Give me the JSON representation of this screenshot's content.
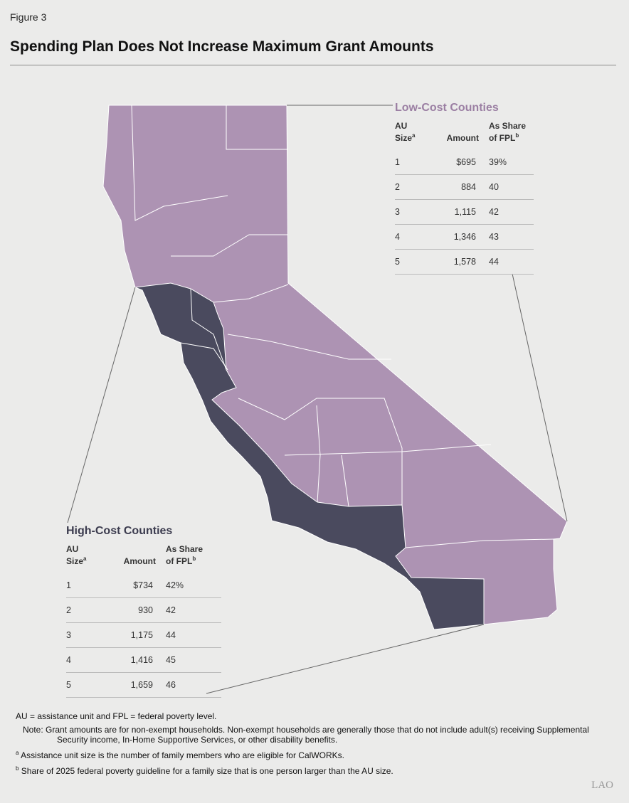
{
  "figure_label": "Figure 3",
  "title": "Spending Plan Does Not Increase Maximum Grant Amounts",
  "low_cost": {
    "title": "Low-Cost Counties",
    "headers": [
      {
        "lines": [
          "AU",
          "Size"
        ],
        "sup": "a"
      },
      {
        "lines": [
          "Amount"
        ]
      },
      {
        "lines": [
          "As Share",
          "of FPL"
        ],
        "sup": "b"
      }
    ],
    "rows": [
      [
        "1",
        "$695",
        "39%"
      ],
      [
        "2",
        "884",
        "40"
      ],
      [
        "3",
        "1,115",
        "42"
      ],
      [
        "4",
        "1,346",
        "43"
      ],
      [
        "5",
        "1,578",
        "44"
      ]
    ]
  },
  "high_cost": {
    "title": "High-Cost Counties",
    "headers": [
      {
        "lines": [
          "AU",
          "Size"
        ],
        "sup": "a"
      },
      {
        "lines": [
          "Amount"
        ]
      },
      {
        "lines": [
          "As Share",
          "of FPL"
        ],
        "sup": "b"
      }
    ],
    "rows": [
      [
        "1",
        "$734",
        "42%"
      ],
      [
        "2",
        "930",
        "42"
      ],
      [
        "3",
        "1,175",
        "44"
      ],
      [
        "4",
        "1,416",
        "45"
      ],
      [
        "5",
        "1,659",
        "46"
      ]
    ]
  },
  "notes": [
    {
      "text": "AU = assistance unit and FPL = federal poverty level."
    },
    {
      "text": "Note: Grant amounts are for non-exempt households. Non-exempt households are generally those that do not include adult(s) receiving Supplemental Security income, In-Home Supportive Services, or other disability benefits."
    },
    {
      "marker": "a",
      "text": "Assistance unit size is the number of family members who are eligible for CalWORKs."
    },
    {
      "marker": "b",
      "text": "Share of 2025 federal poverty guideline for a family size that is one person larger than the AU size."
    }
  ],
  "logo": "LAO"
}
